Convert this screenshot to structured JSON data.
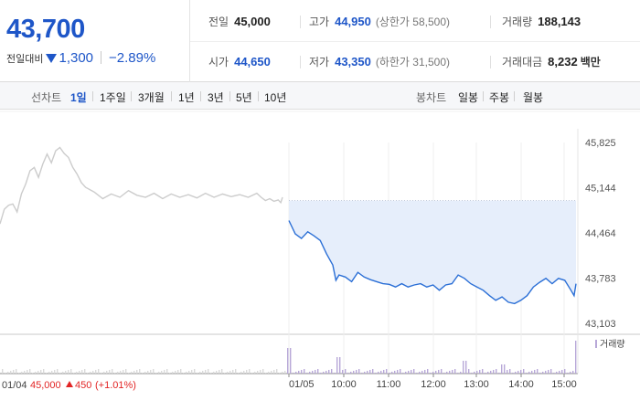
{
  "summary": {
    "price": "43,700",
    "change_label": "전일대비",
    "change_value": "1,300",
    "change_pct": "−2.89%",
    "stats": {
      "prev_label": "전일",
      "prev_value": "45,000",
      "open_label": "시가",
      "open_value": "44,650",
      "high_label": "고가",
      "high_value": "44,950",
      "high_sub": "(상한가 58,500)",
      "low_label": "저가",
      "low_value": "43,350",
      "low_sub": "(하한가 31,500)",
      "volume_label": "거래량",
      "volume_value": "188,143",
      "amount_label": "거래대금",
      "amount_value": "8,232",
      "amount_unit": "백만"
    }
  },
  "tabs": {
    "line_label": "선차트",
    "line_tabs": [
      "1일",
      "1주일",
      "3개월",
      "1년",
      "3년",
      "5년",
      "10년"
    ],
    "active": "1일",
    "candle_label": "봉차트",
    "candle_tabs": [
      "일봉",
      "주봉",
      "월봉"
    ]
  },
  "colors": {
    "accent": "#1e56c8",
    "up": "#e22424",
    "prev_line": "#cccccc",
    "today_line": "#2b6fd6",
    "today_fill": "#e6eefb",
    "volume": "#b8a8d8"
  },
  "chart_data": {
    "type": "line",
    "y_ticks": [
      "45,825",
      "45,144",
      "44,464",
      "43,783",
      "43,103"
    ],
    "ylim": [
      43103,
      45825
    ],
    "reference_line": 44950,
    "x_ticks": [
      "01/05",
      "10:00",
      "11:00",
      "12:00",
      "13:00",
      "14:00",
      "15:00"
    ],
    "volume_label": "거래량",
    "prev_day_info": {
      "date": "01/04",
      "close": "45,000",
      "change": "450",
      "pct": "(+1.01%)"
    },
    "series": [
      {
        "day": "01/04",
        "points": [
          [
            0,
            44600
          ],
          [
            5,
            44820
          ],
          [
            10,
            44880
          ],
          [
            15,
            44900
          ],
          [
            20,
            44780
          ],
          [
            25,
            45050
          ],
          [
            30,
            45200
          ],
          [
            35,
            45400
          ],
          [
            40,
            45450
          ],
          [
            45,
            45300
          ],
          [
            50,
            45500
          ],
          [
            55,
            45650
          ],
          [
            60,
            45520
          ],
          [
            65,
            45700
          ],
          [
            70,
            45750
          ],
          [
            75,
            45660
          ],
          [
            80,
            45600
          ],
          [
            85,
            45450
          ],
          [
            90,
            45350
          ],
          [
            95,
            45220
          ],
          [
            100,
            45150
          ],
          [
            110,
            45080
          ],
          [
            120,
            44980
          ],
          [
            130,
            45050
          ],
          [
            140,
            45000
          ],
          [
            150,
            45100
          ],
          [
            160,
            45030
          ],
          [
            170,
            45000
          ],
          [
            180,
            45060
          ],
          [
            190,
            44980
          ],
          [
            200,
            45050
          ],
          [
            210,
            45000
          ],
          [
            220,
            45040
          ],
          [
            230,
            44990
          ],
          [
            240,
            45060
          ],
          [
            250,
            45000
          ],
          [
            260,
            45050
          ],
          [
            270,
            45010
          ],
          [
            280,
            45040
          ],
          [
            290,
            45000
          ],
          [
            300,
            45060
          ],
          [
            305,
            45000
          ],
          [
            310,
            44950
          ],
          [
            315,
            44980
          ],
          [
            320,
            44940
          ],
          [
            325,
            44960
          ],
          [
            328,
            44920
          ],
          [
            330,
            45000
          ]
        ]
      },
      {
        "day": "01/05",
        "points": [
          [
            0,
            44650
          ],
          [
            10,
            44450
          ],
          [
            20,
            44380
          ],
          [
            30,
            44480
          ],
          [
            40,
            44420
          ],
          [
            50,
            44350
          ],
          [
            60,
            44150
          ],
          [
            70,
            43980
          ],
          [
            75,
            43750
          ],
          [
            80,
            43830
          ],
          [
            90,
            43800
          ],
          [
            100,
            43730
          ],
          [
            110,
            43870
          ],
          [
            120,
            43800
          ],
          [
            130,
            43760
          ],
          [
            140,
            43730
          ],
          [
            150,
            43700
          ],
          [
            160,
            43690
          ],
          [
            170,
            43650
          ],
          [
            180,
            43700
          ],
          [
            190,
            43650
          ],
          [
            200,
            43680
          ],
          [
            210,
            43700
          ],
          [
            220,
            43650
          ],
          [
            230,
            43680
          ],
          [
            240,
            43600
          ],
          [
            250,
            43680
          ],
          [
            260,
            43700
          ],
          [
            270,
            43830
          ],
          [
            280,
            43780
          ],
          [
            290,
            43700
          ],
          [
            300,
            43650
          ],
          [
            310,
            43600
          ],
          [
            320,
            43520
          ],
          [
            330,
            43450
          ],
          [
            340,
            43500
          ],
          [
            350,
            43420
          ],
          [
            360,
            43400
          ],
          [
            370,
            43450
          ],
          [
            380,
            43520
          ],
          [
            390,
            43650
          ],
          [
            400,
            43720
          ],
          [
            410,
            43780
          ],
          [
            420,
            43700
          ],
          [
            430,
            43780
          ],
          [
            440,
            43750
          ],
          [
            450,
            43600
          ],
          [
            455,
            43520
          ],
          [
            458,
            43700
          ]
        ]
      }
    ]
  }
}
